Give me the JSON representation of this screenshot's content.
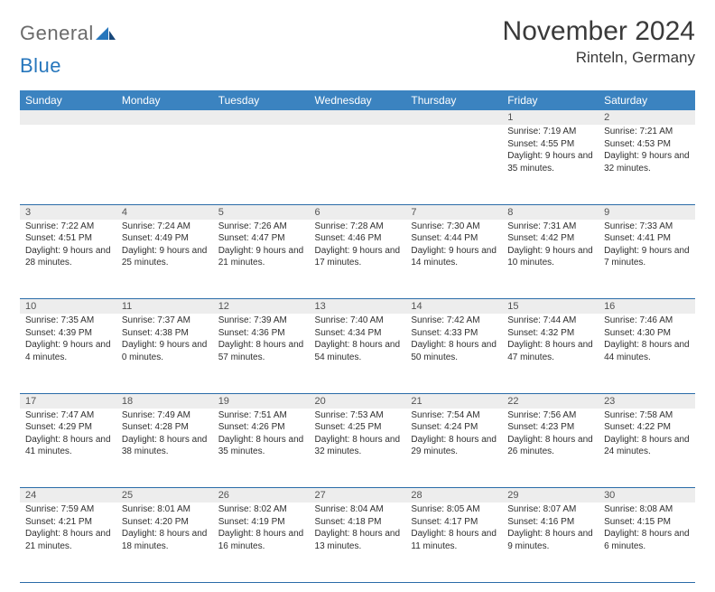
{
  "brand": {
    "general": "General",
    "blue": "Blue"
  },
  "title": "November 2024",
  "location": "Rinteln, Germany",
  "colors": {
    "header_bg": "#3b83c0",
    "header_text": "#ffffff",
    "daynum_bg": "#ededed",
    "rule": "#2a6ca8",
    "logo_gray": "#6b6b6b",
    "logo_blue": "#2676bc"
  },
  "weekdays": [
    "Sunday",
    "Monday",
    "Tuesday",
    "Wednesday",
    "Thursday",
    "Friday",
    "Saturday"
  ],
  "weeks": [
    [
      null,
      null,
      null,
      null,
      null,
      {
        "n": "1",
        "sr": "Sunrise: 7:19 AM",
        "ss": "Sunset: 4:55 PM",
        "dl": "Daylight: 9 hours and 35 minutes."
      },
      {
        "n": "2",
        "sr": "Sunrise: 7:21 AM",
        "ss": "Sunset: 4:53 PM",
        "dl": "Daylight: 9 hours and 32 minutes."
      }
    ],
    [
      {
        "n": "3",
        "sr": "Sunrise: 7:22 AM",
        "ss": "Sunset: 4:51 PM",
        "dl": "Daylight: 9 hours and 28 minutes."
      },
      {
        "n": "4",
        "sr": "Sunrise: 7:24 AM",
        "ss": "Sunset: 4:49 PM",
        "dl": "Daylight: 9 hours and 25 minutes."
      },
      {
        "n": "5",
        "sr": "Sunrise: 7:26 AM",
        "ss": "Sunset: 4:47 PM",
        "dl": "Daylight: 9 hours and 21 minutes."
      },
      {
        "n": "6",
        "sr": "Sunrise: 7:28 AM",
        "ss": "Sunset: 4:46 PM",
        "dl": "Daylight: 9 hours and 17 minutes."
      },
      {
        "n": "7",
        "sr": "Sunrise: 7:30 AM",
        "ss": "Sunset: 4:44 PM",
        "dl": "Daylight: 9 hours and 14 minutes."
      },
      {
        "n": "8",
        "sr": "Sunrise: 7:31 AM",
        "ss": "Sunset: 4:42 PM",
        "dl": "Daylight: 9 hours and 10 minutes."
      },
      {
        "n": "9",
        "sr": "Sunrise: 7:33 AM",
        "ss": "Sunset: 4:41 PM",
        "dl": "Daylight: 9 hours and 7 minutes."
      }
    ],
    [
      {
        "n": "10",
        "sr": "Sunrise: 7:35 AM",
        "ss": "Sunset: 4:39 PM",
        "dl": "Daylight: 9 hours and 4 minutes."
      },
      {
        "n": "11",
        "sr": "Sunrise: 7:37 AM",
        "ss": "Sunset: 4:38 PM",
        "dl": "Daylight: 9 hours and 0 minutes."
      },
      {
        "n": "12",
        "sr": "Sunrise: 7:39 AM",
        "ss": "Sunset: 4:36 PM",
        "dl": "Daylight: 8 hours and 57 minutes."
      },
      {
        "n": "13",
        "sr": "Sunrise: 7:40 AM",
        "ss": "Sunset: 4:34 PM",
        "dl": "Daylight: 8 hours and 54 minutes."
      },
      {
        "n": "14",
        "sr": "Sunrise: 7:42 AM",
        "ss": "Sunset: 4:33 PM",
        "dl": "Daylight: 8 hours and 50 minutes."
      },
      {
        "n": "15",
        "sr": "Sunrise: 7:44 AM",
        "ss": "Sunset: 4:32 PM",
        "dl": "Daylight: 8 hours and 47 minutes."
      },
      {
        "n": "16",
        "sr": "Sunrise: 7:46 AM",
        "ss": "Sunset: 4:30 PM",
        "dl": "Daylight: 8 hours and 44 minutes."
      }
    ],
    [
      {
        "n": "17",
        "sr": "Sunrise: 7:47 AM",
        "ss": "Sunset: 4:29 PM",
        "dl": "Daylight: 8 hours and 41 minutes."
      },
      {
        "n": "18",
        "sr": "Sunrise: 7:49 AM",
        "ss": "Sunset: 4:28 PM",
        "dl": "Daylight: 8 hours and 38 minutes."
      },
      {
        "n": "19",
        "sr": "Sunrise: 7:51 AM",
        "ss": "Sunset: 4:26 PM",
        "dl": "Daylight: 8 hours and 35 minutes."
      },
      {
        "n": "20",
        "sr": "Sunrise: 7:53 AM",
        "ss": "Sunset: 4:25 PM",
        "dl": "Daylight: 8 hours and 32 minutes."
      },
      {
        "n": "21",
        "sr": "Sunrise: 7:54 AM",
        "ss": "Sunset: 4:24 PM",
        "dl": "Daylight: 8 hours and 29 minutes."
      },
      {
        "n": "22",
        "sr": "Sunrise: 7:56 AM",
        "ss": "Sunset: 4:23 PM",
        "dl": "Daylight: 8 hours and 26 minutes."
      },
      {
        "n": "23",
        "sr": "Sunrise: 7:58 AM",
        "ss": "Sunset: 4:22 PM",
        "dl": "Daylight: 8 hours and 24 minutes."
      }
    ],
    [
      {
        "n": "24",
        "sr": "Sunrise: 7:59 AM",
        "ss": "Sunset: 4:21 PM",
        "dl": "Daylight: 8 hours and 21 minutes."
      },
      {
        "n": "25",
        "sr": "Sunrise: 8:01 AM",
        "ss": "Sunset: 4:20 PM",
        "dl": "Daylight: 8 hours and 18 minutes."
      },
      {
        "n": "26",
        "sr": "Sunrise: 8:02 AM",
        "ss": "Sunset: 4:19 PM",
        "dl": "Daylight: 8 hours and 16 minutes."
      },
      {
        "n": "27",
        "sr": "Sunrise: 8:04 AM",
        "ss": "Sunset: 4:18 PM",
        "dl": "Daylight: 8 hours and 13 minutes."
      },
      {
        "n": "28",
        "sr": "Sunrise: 8:05 AM",
        "ss": "Sunset: 4:17 PM",
        "dl": "Daylight: 8 hours and 11 minutes."
      },
      {
        "n": "29",
        "sr": "Sunrise: 8:07 AM",
        "ss": "Sunset: 4:16 PM",
        "dl": "Daylight: 8 hours and 9 minutes."
      },
      {
        "n": "30",
        "sr": "Sunrise: 8:08 AM",
        "ss": "Sunset: 4:15 PM",
        "dl": "Daylight: 8 hours and 6 minutes."
      }
    ]
  ]
}
